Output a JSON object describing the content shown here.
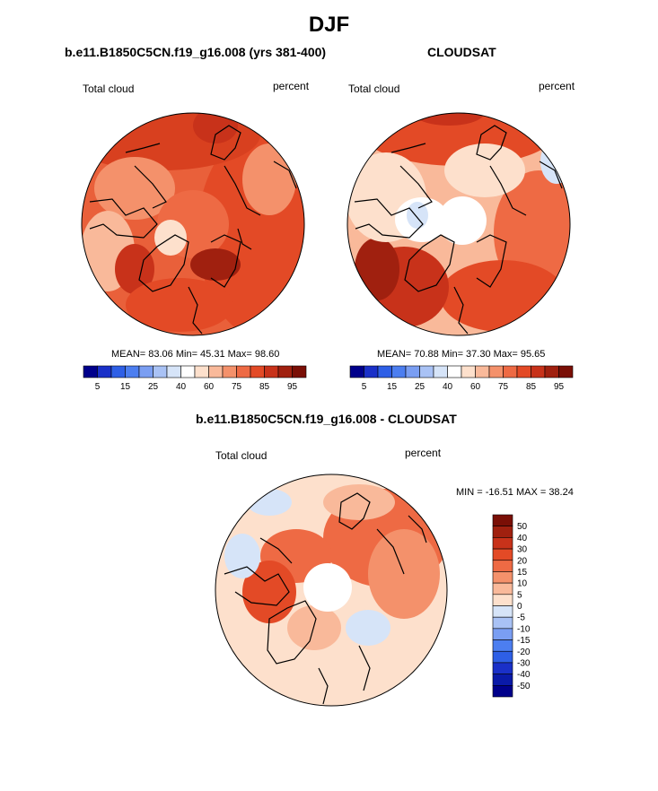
{
  "title": "DJF",
  "panel_model": {
    "title": "b.e11.B1850C5CN.f19_g16.008 (yrs 381-400)",
    "left_label": "Total cloud",
    "right_label": "percent",
    "stats": "MEAN=  83.06  Min=  45.31  Max=  98.60",
    "colorbar_labels": [
      "5",
      "15",
      "25",
      "40",
      "60",
      "75",
      "85",
      "95"
    ]
  },
  "panel_obs": {
    "title": "CLOUDSAT",
    "left_label": "Total cloud",
    "right_label": "percent",
    "stats": "MEAN=  70.88  Min=  37.30  Max=  95.65",
    "colorbar_labels": [
      "5",
      "15",
      "25",
      "40",
      "60",
      "75",
      "85",
      "95"
    ]
  },
  "panel_diff": {
    "title": "b.e11.B1850C5CN.f19_g16.008 - CLOUDSAT",
    "left_label": "Total cloud",
    "right_label": "percent",
    "stats": "MIN = -16.51 MAX =  38.24",
    "colorbar_labels": [
      "50",
      "40",
      "30",
      "20",
      "15",
      "10",
      "5",
      "0",
      "-5",
      "-10",
      "-15",
      "-20",
      "-30",
      "-40",
      "-50"
    ]
  },
  "colors": {
    "seq_palette": [
      "#00008b",
      "#1a30c8",
      "#2e5fe6",
      "#4c7ef0",
      "#7a9ef2",
      "#a9c2f5",
      "#d6e4f8",
      "#ffffff",
      "#fde0cc",
      "#f9b99a",
      "#f4916b",
      "#ee6a44",
      "#e34a26",
      "#c8321a",
      "#a0200f",
      "#7a0f06"
    ],
    "div_palette": [
      "#7a0f06",
      "#a0200f",
      "#c8321a",
      "#e34a26",
      "#ee6a44",
      "#f4916b",
      "#f9b99a",
      "#fde0cc",
      "#d6e4f8",
      "#a9c2f5",
      "#7a9ef2",
      "#4c7ef0",
      "#2e5fe6",
      "#1a30c8",
      "#0a1aa8",
      "#00008b"
    ]
  }
}
